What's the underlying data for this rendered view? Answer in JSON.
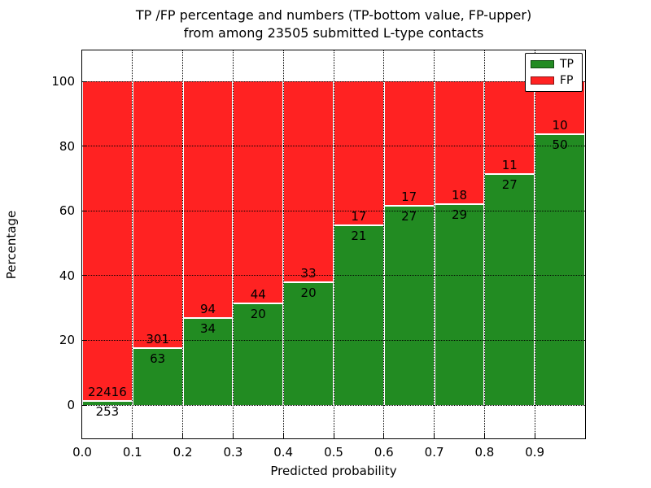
{
  "title": {
    "line1": "TP /FP percentage and numbers (TP-bottom value, FP-upper)",
    "line2": "from among 23505 submitted L-type contacts"
  },
  "chart_data": {
    "type": "bar",
    "stacked": true,
    "normalized_to_percent": 100,
    "title": "TP /FP percentage and numbers (TP-bottom value, FP-upper) from among 23505 submitted L-type contacts",
    "xlabel": "Predicted probability",
    "ylabel": "Percentage",
    "total_submitted": 23505,
    "categories": [
      "0.0",
      "0.1",
      "0.2",
      "0.3",
      "0.4",
      "0.5",
      "0.6",
      "0.7",
      "0.8",
      "0.9"
    ],
    "bin_width": 0.1,
    "xticks": [
      "0.0",
      "0.1",
      "0.2",
      "0.3",
      "0.4",
      "0.5",
      "0.6",
      "0.7",
      "0.8",
      "0.9"
    ],
    "yticks": [
      0,
      20,
      40,
      60,
      80,
      100
    ],
    "xlim": [
      0.0,
      1.0
    ],
    "ylim": [
      -10.5,
      109.8
    ],
    "grid": true,
    "legend_position": "upper right",
    "series": [
      {
        "name": "TP",
        "color": "#228b22",
        "counts": [
          253,
          63,
          34,
          20,
          20,
          21,
          27,
          29,
          27,
          50
        ],
        "percent": [
          1.12,
          17.31,
          26.56,
          31.25,
          37.74,
          55.26,
          61.36,
          61.7,
          71.05,
          83.33
        ]
      },
      {
        "name": "FP",
        "color": "#ff2222",
        "counts": [
          22416,
          301,
          94,
          44,
          33,
          17,
          17,
          18,
          11,
          10
        ],
        "percent": [
          98.88,
          82.69,
          73.44,
          68.75,
          62.26,
          44.74,
          38.64,
          38.3,
          28.95,
          16.67
        ]
      }
    ]
  }
}
